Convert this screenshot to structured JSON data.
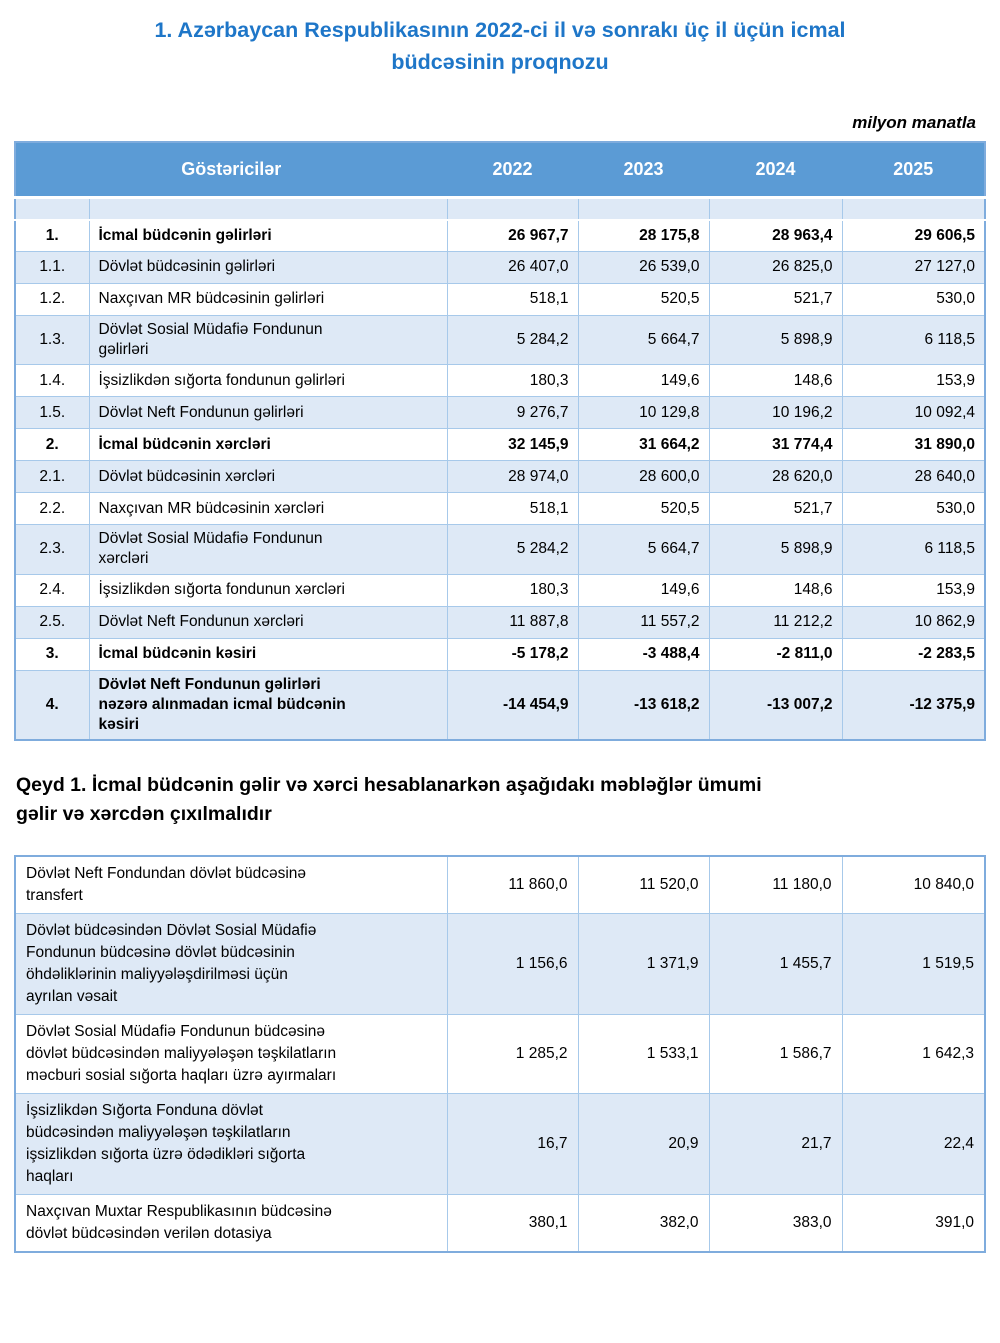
{
  "colors": {
    "header_bg": "#5B9BD5",
    "row_shade": "#DEE9F6",
    "border": "#A7C9EA",
    "outer_border": "#7FACDD",
    "title_blue": "#1E76C8"
  },
  "page": {
    "title": "1. Azərbaycan Respublikasının 2022-ci il və sonrakı üç il üçün icmal\nbüdcəsinin proqnozu",
    "unit_note": "milyon manatla",
    "note": "Qeyd 1. İcmal büdcənin gəlir və xərci hesablanarkən aşağıdakı məbləğlər ümumi\ngəlir və xərcdən çıxılmalıdır"
  },
  "main_table": {
    "header": {
      "label": "Göstəricilər",
      "years": [
        "2022",
        "2023",
        "2024",
        "2025"
      ]
    },
    "rows": [
      {
        "num": "1.",
        "label": "İcmal büdcənin gəlirləri",
        "values": [
          "26 967,7",
          "28 175,8",
          "28 963,4",
          "29 606,5"
        ],
        "bold": true,
        "shade": false
      },
      {
        "num": "1.1.",
        "label": "Dövlət büdcəsinin gəlirləri",
        "values": [
          "26 407,0",
          "26 539,0",
          "26 825,0",
          "27 127,0"
        ],
        "bold": false,
        "shade": true
      },
      {
        "num": "1.2.",
        "label": "Naxçıvan MR büdcəsinin gəlirləri",
        "values": [
          "518,1",
          "520,5",
          "521,7",
          "530,0"
        ],
        "bold": false,
        "shade": false
      },
      {
        "num": "1.3.",
        "label": "Dövlət Sosial Müdafiə Fondunun\ngəlirləri",
        "values": [
          "5 284,2",
          "5 664,7",
          "5 898,9",
          "6 118,5"
        ],
        "bold": false,
        "shade": true
      },
      {
        "num": "1.4.",
        "label": "İşsizlikdən sığorta fondunun gəlirləri",
        "values": [
          "180,3",
          "149,6",
          "148,6",
          "153,9"
        ],
        "bold": false,
        "shade": false
      },
      {
        "num": "1.5.",
        "label": "Dövlət Neft Fondunun gəlirləri",
        "values": [
          "9 276,7",
          "10 129,8",
          "10 196,2",
          "10 092,4"
        ],
        "bold": false,
        "shade": true
      },
      {
        "num": "2.",
        "label": "İcmal büdcənin xərcləri",
        "values": [
          "32 145,9",
          "31 664,2",
          "31 774,4",
          "31 890,0"
        ],
        "bold": true,
        "shade": false
      },
      {
        "num": "2.1.",
        "label": "Dövlət büdcəsinin xərcləri",
        "values": [
          "28 974,0",
          "28 600,0",
          "28 620,0",
          "28 640,0"
        ],
        "bold": false,
        "shade": true
      },
      {
        "num": "2.2.",
        "label": "Naxçıvan MR büdcəsinin xərcləri",
        "values": [
          "518,1",
          "520,5",
          "521,7",
          "530,0"
        ],
        "bold": false,
        "shade": false
      },
      {
        "num": "2.3.",
        "label": "Dövlət Sosial Müdafiə Fondunun\nxərcləri",
        "values": [
          "5 284,2",
          "5 664,7",
          "5 898,9",
          "6 118,5"
        ],
        "bold": false,
        "shade": true
      },
      {
        "num": "2.4.",
        "label": "İşsizlikdən sığorta fondunun xərcləri",
        "values": [
          "180,3",
          "149,6",
          "148,6",
          "153,9"
        ],
        "bold": false,
        "shade": false
      },
      {
        "num": "2.5.",
        "label": "Dövlət Neft Fondunun xərcləri",
        "values": [
          "11 887,8",
          "11 557,2",
          "11 212,2",
          "10 862,9"
        ],
        "bold": false,
        "shade": true
      },
      {
        "num": "3.",
        "label": "İcmal büdcənin kəsiri",
        "values": [
          "-5 178,2",
          "-3 488,4",
          "-2 811,0",
          "-2 283,5"
        ],
        "bold": true,
        "shade": false
      },
      {
        "num": "4.",
        "label": "Dövlət Neft Fondunun gəlirləri\nnəzərə alınmadan icmal büdcənin\nkəsiri",
        "values": [
          "-14 454,9",
          "-13 618,2",
          "-13 007,2",
          "-12 375,9"
        ],
        "bold": true,
        "shade": true
      }
    ]
  },
  "deductions_table": {
    "rows": [
      {
        "label": "Dövlət Neft Fondundan dövlət büdcəsinə\ntransfert",
        "values": [
          "11 860,0",
          "11 520,0",
          "11 180,0",
          "10 840,0"
        ],
        "shade": false
      },
      {
        "label": "Dövlət büdcəsindən Dövlət Sosial Müdafiə\nFondunun büdcəsinə dövlət büdcəsinin\nöhdəliklərinin maliyyələşdirilməsi üçün\nayrılan vəsait",
        "values": [
          "1 156,6",
          "1 371,9",
          "1 455,7",
          "1 519,5"
        ],
        "shade": true
      },
      {
        "label": "Dövlət Sosial Müdafiə Fondunun büdcəsinə\ndövlət büdcəsindən maliyyələşən təşkilatların\nməcburi sosial sığorta haqları üzrə ayırmaları",
        "values": [
          "1 285,2",
          "1 533,1",
          "1 586,7",
          "1 642,3"
        ],
        "shade": false
      },
      {
        "label": "İşsizlikdən Sığorta Fonduna dövlət\nbüdcəsindən maliyyələşən təşkilatların\nişsizlikdən sığorta üzrə ödədikləri sığorta\nhaqları",
        "values": [
          "16,7",
          "20,9",
          "21,7",
          "22,4"
        ],
        "shade": true
      },
      {
        "label": "Naxçıvan Muxtar Respublikasının büdcəsinə\ndövlət büdcəsindən verilən dotasiya",
        "values": [
          "380,1",
          "382,0",
          "383,0",
          "391,0"
        ],
        "shade": false
      }
    ]
  }
}
